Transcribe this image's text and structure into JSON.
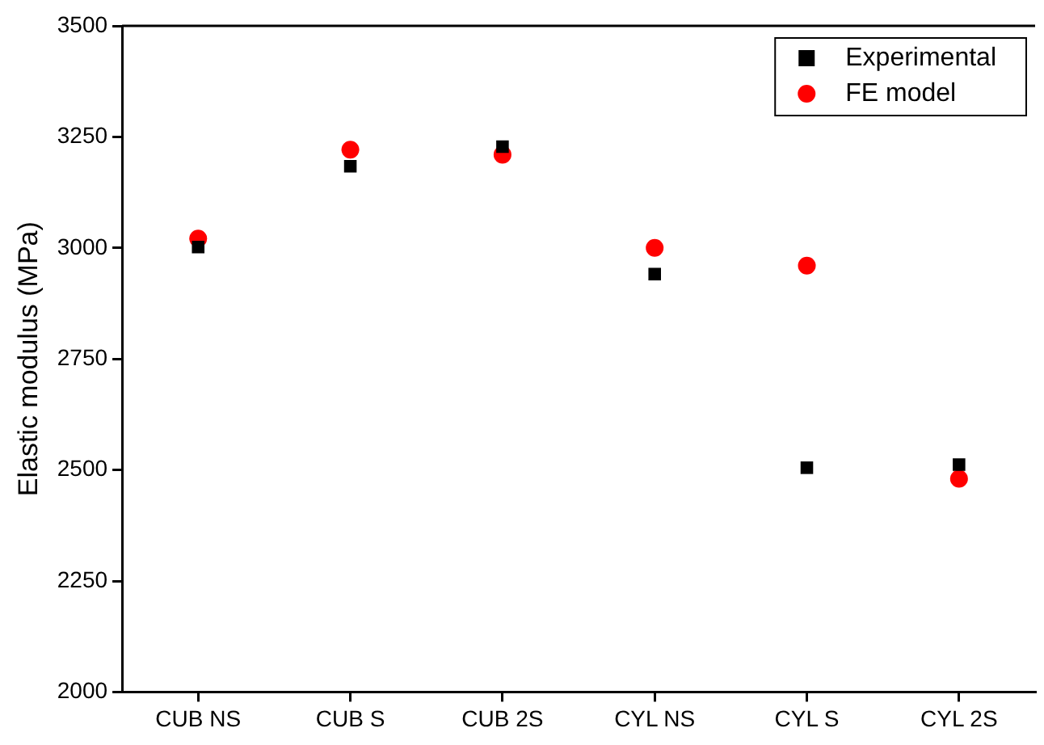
{
  "chart_data": {
    "type": "scatter",
    "ylabel": "Elastic modulus (MPa)",
    "categories": [
      "CUB NS",
      "CUB S",
      "CUB 2S",
      "CYL NS",
      "CYL S",
      "CYL 2S"
    ],
    "series": [
      {
        "name": "Experimental",
        "color": "#000000",
        "marker": "square",
        "values": [
          3002,
          3184,
          3228,
          2941,
          2505,
          2512
        ]
      },
      {
        "name": "FE model",
        "color": "#ff0000",
        "marker": "circle",
        "values": [
          3021,
          3221,
          3210,
          3000,
          2960,
          2480
        ]
      }
    ],
    "ylim": [
      2000,
      3500
    ],
    "yticks": [
      2000,
      2250,
      2500,
      2750,
      3000,
      3250,
      3500
    ],
    "grid": false,
    "legend": "top right"
  }
}
